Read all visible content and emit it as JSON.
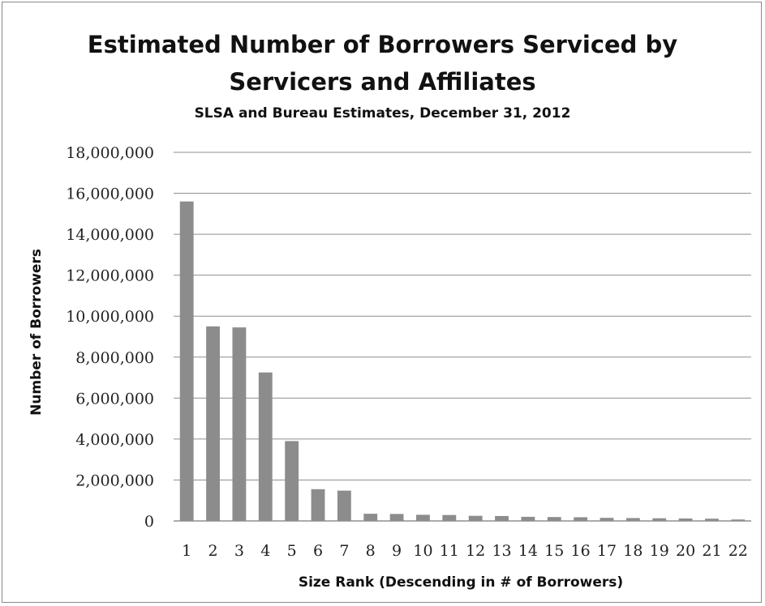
{
  "chart_data": {
    "type": "bar",
    "title_line1": "Estimated Number of Borrowers Serviced by",
    "title_line2": "Servicers and Affiliates",
    "subtitle": "SLSA and Bureau Estimates, December 31, 2012",
    "xlabel": "Size Rank (Descending in # of Borrowers)",
    "ylabel": "Number of Borrowers",
    "categories": [
      "1",
      "2",
      "3",
      "4",
      "5",
      "6",
      "7",
      "8",
      "9",
      "10",
      "11",
      "12",
      "13",
      "14",
      "15",
      "16",
      "17",
      "18",
      "19",
      "20",
      "21",
      "22"
    ],
    "values": [
      15600000,
      9500000,
      9450000,
      7250000,
      3900000,
      1550000,
      1480000,
      350000,
      340000,
      300000,
      290000,
      250000,
      240000,
      200000,
      190000,
      180000,
      150000,
      140000,
      130000,
      120000,
      110000,
      70000
    ],
    "ylim": [
      0,
      18000000
    ],
    "yticks": [
      "0",
      "2,000,000",
      "4,000,000",
      "6,000,000",
      "8,000,000",
      "10,000,000",
      "12,000,000",
      "14,000,000",
      "16,000,000",
      "18,000,000"
    ],
    "grid": true,
    "bar_color": "#8c8c8c",
    "grid_color": "#8f8f8f"
  }
}
